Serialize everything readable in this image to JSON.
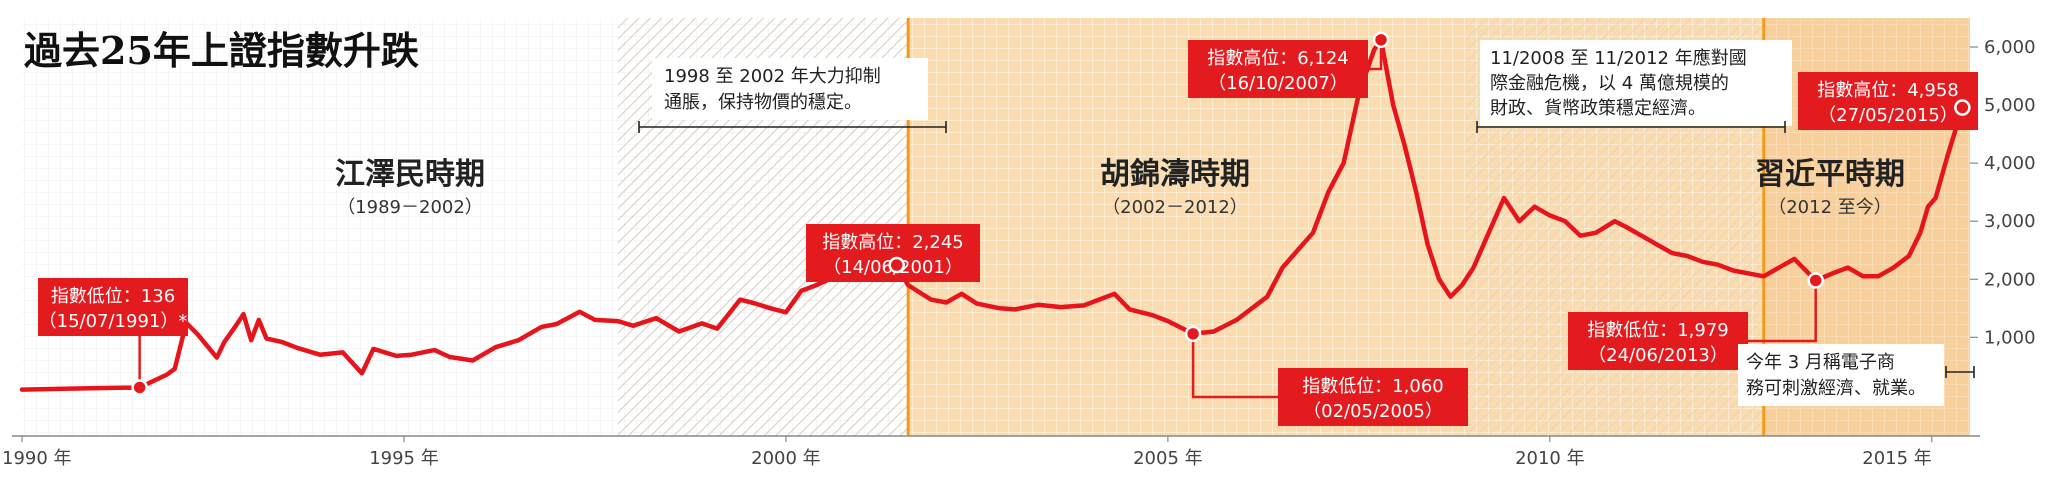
{
  "title": "過去25年上證指數升跌",
  "colors": {
    "line": "#e8141b",
    "era_bg": "#fbdcae",
    "era_grid": "#ffffff",
    "hatch": "#d9d0c3",
    "divider": "#f39a1c",
    "callout_red": "#e31b1f",
    "callout_text": "#ffffff",
    "axis_text": "#444444"
  },
  "eras": [
    {
      "name": "江澤民時期",
      "period": "（1989－2002）"
    },
    {
      "name": "胡錦濤時期",
      "period": "（2002－2012）"
    },
    {
      "name": "習近平時期",
      "period": "（2012 至今）"
    }
  ],
  "notes": {
    "policy_1998": [
      "1998 至 2002 年大力抑制",
      "通脹，保持物價的穩定。"
    ],
    "stimulus_2008": [
      "11/2008 至 11/2012 年應對國",
      "際金融危機，以 4 萬億規模的",
      "財政、貨幣政策穩定經濟。"
    ],
    "march_2015": [
      "今年 3 月稱電子商",
      "務可刺激經濟、就業。"
    ]
  },
  "callouts": [
    {
      "line1": "指數低位：136",
      "line2": "（15/07/1991）*",
      "date": 1991.54,
      "value": 136
    },
    {
      "line1": "指數高位：2,245",
      "line2": "（14/06/2001）",
      "date": 2001.45,
      "value": 2245
    },
    {
      "line1": "指數低位：1,060",
      "line2": "（02/05/2005）",
      "date": 2005.33,
      "value": 1060
    },
    {
      "line1": "指數高位：6,124",
      "line2": "（16/10/2007）",
      "date": 2007.79,
      "value": 6124
    },
    {
      "line1": "指數低位：1,979",
      "line2": "（24/06/2013）",
      "date": 2013.48,
      "value": 1979
    },
    {
      "line1": "指數高位：4,958",
      "line2": "（27/05/2015）",
      "date": 2015.4,
      "value": 4958
    }
  ],
  "chart_data": {
    "type": "line",
    "title": "過去25年上證指數升跌",
    "xlabel": "",
    "ylabel": "",
    "x_ticks": [
      "1990 年",
      "1995 年",
      "2000 年",
      "2005 年",
      "2010 年",
      "2015 年"
    ],
    "x_tick_years": [
      1990,
      1995,
      2000,
      2005,
      2010,
      2015
    ],
    "y_ticks": [
      "1,000",
      "2,000",
      "3,000",
      "4,000",
      "5,000",
      "6,000"
    ],
    "y_tick_values": [
      1000,
      2000,
      3000,
      4000,
      5000,
      6000
    ],
    "xlim": [
      1990,
      2015.5
    ],
    "ylim": [
      -700,
      6500
    ],
    "grid": true,
    "series": [
      {
        "name": "",
        "x": [
          1990.0,
          1990.8,
          1991.54,
          1991.9,
          1992.0,
          1992.15,
          1992.3,
          1992.55,
          1992.65,
          1992.8,
          1992.9,
          1993.0,
          1993.1,
          1993.2,
          1993.4,
          1993.6,
          1993.9,
          1994.2,
          1994.45,
          1994.6,
          1994.9,
          1995.1,
          1995.4,
          1995.6,
          1995.9,
          1996.2,
          1996.5,
          1996.8,
          1997.0,
          1997.3,
          1997.5,
          1997.8,
          1998.0,
          1998.3,
          1998.6,
          1998.9,
          1999.1,
          1999.4,
          1999.6,
          1999.8,
          2000.0,
          2000.2,
          2000.4,
          2000.7,
          2000.9,
          2001.1,
          2001.3,
          2001.45,
          2001.6,
          2001.9,
          2002.1,
          2002.3,
          2002.5,
          2002.8,
          2003.0,
          2003.3,
          2003.6,
          2003.9,
          2004.1,
          2004.3,
          2004.5,
          2004.8,
          2005.0,
          2005.33,
          2005.6,
          2005.9,
          2006.1,
          2006.3,
          2006.5,
          2006.7,
          2006.9,
          2007.1,
          2007.3,
          2007.5,
          2007.7,
          2007.79,
          2007.95,
          2008.1,
          2008.25,
          2008.4,
          2008.55,
          2008.7,
          2008.85,
          2009.0,
          2009.2,
          2009.4,
          2009.6,
          2009.8,
          2010.0,
          2010.2,
          2010.4,
          2010.6,
          2010.85,
          2011.0,
          2011.2,
          2011.4,
          2011.6,
          2011.8,
          2012.0,
          2012.2,
          2012.4,
          2012.6,
          2012.8,
          2013.0,
          2013.2,
          2013.48,
          2013.7,
          2013.9,
          2014.1,
          2014.3,
          2014.5,
          2014.7,
          2014.85,
          2014.95,
          2015.05,
          2015.2,
          2015.4
        ],
        "values": [
          100,
          120,
          136,
          360,
          460,
          1250,
          1050,
          650,
          920,
          1200,
          1400,
          950,
          1300,
          980,
          920,
          820,
          700,
          740,
          380,
          800,
          680,
          700,
          780,
          660,
          600,
          830,
          950,
          1180,
          1230,
          1440,
          1300,
          1280,
          1200,
          1330,
          1100,
          1240,
          1150,
          1650,
          1580,
          1500,
          1430,
          1800,
          1900,
          2080,
          2100,
          2180,
          2150,
          2245,
          1900,
          1650,
          1600,
          1750,
          1580,
          1500,
          1480,
          1560,
          1520,
          1550,
          1650,
          1750,
          1480,
          1380,
          1280,
          1060,
          1100,
          1300,
          1500,
          1700,
          2200,
          2500,
          2800,
          3500,
          4000,
          5200,
          5950,
          6124,
          5000,
          4300,
          3500,
          2600,
          2000,
          1700,
          1900,
          2200,
          2800,
          3400,
          3000,
          3250,
          3100,
          3000,
          2750,
          2800,
          3000,
          2900,
          2750,
          2600,
          2450,
          2400,
          2300,
          2250,
          2150,
          2100,
          2050,
          2200,
          2350,
          1979,
          2100,
          2200,
          2050,
          2050,
          2200,
          2400,
          2800,
          3250,
          3400,
          4100,
          4958
        ]
      }
    ]
  }
}
